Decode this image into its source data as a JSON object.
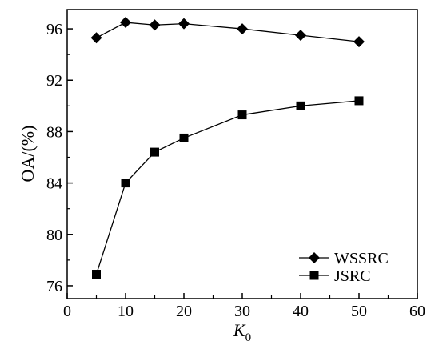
{
  "chart_data": {
    "type": "line",
    "xlabel": "K",
    "xlabel_subscript": "0",
    "ylabel": "OA/(%)",
    "xlim": [
      0,
      60
    ],
    "ylim": [
      75,
      97.5
    ],
    "x_ticks": [
      0,
      10,
      20,
      30,
      40,
      50,
      60
    ],
    "y_ticks": [
      76,
      80,
      84,
      88,
      92,
      96
    ],
    "x_tick_labels": [
      "0",
      "10",
      "20",
      "30",
      "40",
      "50",
      "60"
    ],
    "y_tick_labels": [
      "76",
      "80",
      "84",
      "88",
      "92",
      "96"
    ],
    "grid": false,
    "legend_position": "bottom-right",
    "series": [
      {
        "name": "WSSRC",
        "marker": "diamond",
        "x": [
          5,
          10,
          15,
          20,
          30,
          40,
          50
        ],
        "y": [
          95.3,
          96.5,
          96.3,
          96.4,
          96.0,
          95.5,
          95.0
        ]
      },
      {
        "name": "JSRC",
        "marker": "square",
        "x": [
          5,
          10,
          15,
          20,
          30,
          40,
          50
        ],
        "y": [
          76.9,
          84.0,
          86.4,
          87.5,
          89.3,
          90.0,
          90.4
        ]
      }
    ]
  }
}
